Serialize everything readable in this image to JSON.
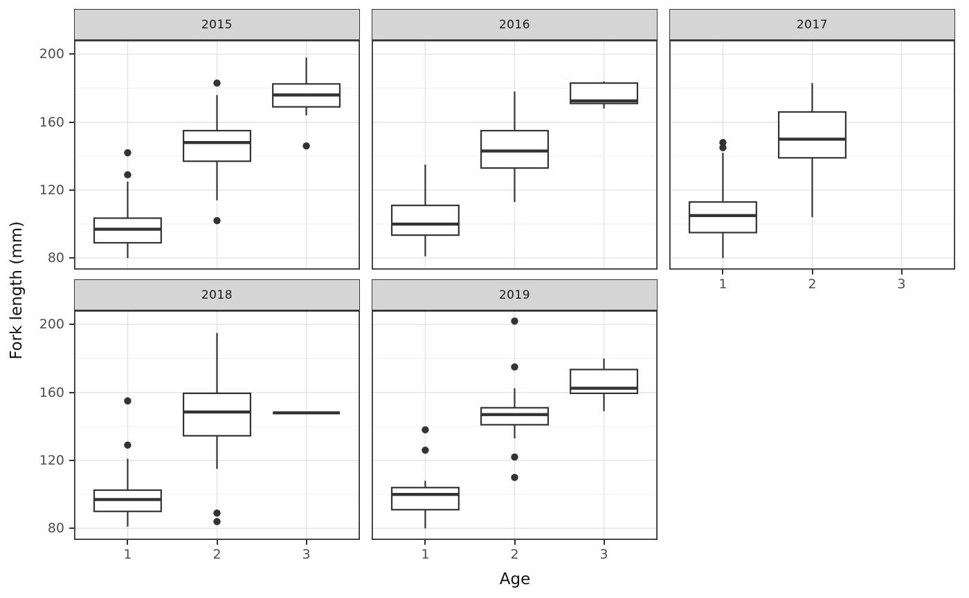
{
  "chart_data": {
    "type": "boxplot",
    "title": "",
    "xlabel": "Age",
    "ylabel": "Fork length (mm)",
    "facet_variable": "year",
    "x_categories": [
      "1",
      "2",
      "3"
    ],
    "y_ticks": [
      80,
      120,
      160,
      200
    ],
    "y_minor_gridlines": [
      100,
      140,
      180
    ],
    "ylim": [
      73.2,
      208.3
    ],
    "grid": true,
    "legend": "none",
    "colors": {
      "strip_fill": "#d5d5d5",
      "strip_text": "#1a1a1a",
      "panel_border": "#333333",
      "box_stroke": "#333333",
      "box_fill": "#ffffff",
      "outlier": "#333333",
      "grid_major": "#e5e5e5",
      "grid_minor": "#efefef",
      "tick_label": "#4d4d4d",
      "axis_title": "#111111"
    },
    "facets": [
      {
        "label": "2015",
        "x_axis_labels": false,
        "boxes": [
          {
            "age": "1",
            "whisker_low": 80,
            "q1": 89,
            "median": 97,
            "q3": 103.5,
            "whisker_high": 125,
            "outliers": [
              129,
              142
            ]
          },
          {
            "age": "2",
            "whisker_low": 114,
            "q1": 137,
            "median": 148,
            "q3": 155,
            "whisker_high": 176,
            "outliers": [
              102,
              183
            ]
          },
          {
            "age": "3",
            "whisker_low": 164,
            "q1": 169,
            "median": 176,
            "q3": 182.5,
            "whisker_high": 198,
            "outliers": [
              146
            ]
          }
        ]
      },
      {
        "label": "2016",
        "x_axis_labels": false,
        "boxes": [
          {
            "age": "1",
            "whisker_low": 81,
            "q1": 93.5,
            "median": 100,
            "q3": 111,
            "whisker_high": 135,
            "outliers": []
          },
          {
            "age": "2",
            "whisker_low": 113,
            "q1": 133,
            "median": 143,
            "q3": 155,
            "whisker_high": 178,
            "outliers": []
          },
          {
            "age": "3",
            "whisker_low": 168,
            "q1": 171,
            "median": 172.5,
            "q3": 183,
            "whisker_high": 184,
            "outliers": []
          }
        ]
      },
      {
        "label": "2017",
        "x_axis_labels": true,
        "boxes": [
          {
            "age": "1",
            "whisker_low": 80,
            "q1": 95,
            "median": 105,
            "q3": 113,
            "whisker_high": 142,
            "outliers": [
              145,
              148
            ]
          },
          {
            "age": "2",
            "whisker_low": 104,
            "q1": 139,
            "median": 150,
            "q3": 166,
            "whisker_high": 183,
            "outliers": []
          }
        ]
      },
      {
        "label": "2018",
        "x_axis_labels": true,
        "boxes": [
          {
            "age": "1",
            "whisker_low": 81,
            "q1": 90,
            "median": 97,
            "q3": 102.5,
            "whisker_high": 121,
            "outliers": [
              129,
              155
            ]
          },
          {
            "age": "2",
            "whisker_low": 115,
            "q1": 134.5,
            "median": 148.5,
            "q3": 159.5,
            "whisker_high": 195,
            "outliers": [
              84,
              89
            ]
          },
          {
            "age": "3",
            "whisker_low": 148,
            "q1": 148,
            "median": 148,
            "q3": 148,
            "whisker_high": 148,
            "outliers": []
          }
        ]
      },
      {
        "label": "2019",
        "x_axis_labels": true,
        "boxes": [
          {
            "age": "1",
            "whisker_low": 80,
            "q1": 91,
            "median": 100,
            "q3": 104,
            "whisker_high": 108,
            "outliers": [
              126,
              138
            ]
          },
          {
            "age": "2",
            "whisker_low": 133,
            "q1": 141,
            "median": 147,
            "q3": 151,
            "whisker_high": 162.5,
            "outliers": [
              110,
              122,
              175,
              202
            ]
          },
          {
            "age": "3",
            "whisker_low": 149,
            "q1": 159.5,
            "median": 162.5,
            "q3": 173.5,
            "whisker_high": 180,
            "outliers": []
          }
        ]
      }
    ]
  }
}
